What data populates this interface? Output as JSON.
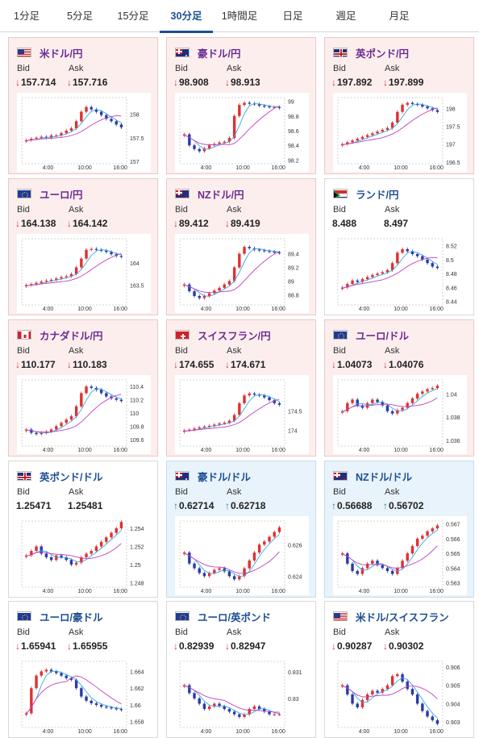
{
  "tabs": [
    {
      "label": "1分足",
      "active": false
    },
    {
      "label": "5分足",
      "active": false
    },
    {
      "label": "15分足",
      "active": false
    },
    {
      "label": "30分足",
      "active": true
    },
    {
      "label": "1時間足",
      "active": false
    },
    {
      "label": "日足",
      "active": false
    },
    {
      "label": "週足",
      "active": false
    },
    {
      "label": "月足",
      "active": false
    }
  ],
  "x_ticks": [
    "4:00",
    "10:00",
    "16:00"
  ],
  "colors": {
    "up": "#e03030",
    "down": "#2a3aa8",
    "ma_short": "#39a8e0",
    "ma_long": "#c040c0"
  },
  "cards": [
    {
      "name": "米ドル/円",
      "bg": "pink",
      "flags": [
        "us",
        "jp"
      ],
      "bid_label": "Bid",
      "ask_label": "Ask",
      "bid_dir": "↓",
      "ask_dir": "↓",
      "bid": "157.714",
      "ask": "157.716",
      "chart_data": {
        "type": "candlestick",
        "y_ticks": [
          "158",
          "157.5",
          "157"
        ],
        "ylim": [
          156.95,
          158.35
        ],
        "series": [
          157.45,
          157.48,
          157.5,
          157.52,
          157.5,
          157.55,
          157.55,
          157.6,
          157.65,
          157.7,
          157.85,
          158.05,
          158.15,
          158.1,
          158.05,
          157.98,
          157.9,
          157.85,
          157.78,
          157.72
        ]
      }
    },
    {
      "name": "豪ドル/円",
      "bg": "pink",
      "flags": [
        "au",
        "jp"
      ],
      "bid_label": "Bid",
      "ask_label": "Ask",
      "bid_dir": "↓",
      "ask_dir": "↓",
      "bid": "98.908",
      "ask": "98.913",
      "chart_data": {
        "type": "candlestick",
        "y_ticks": [
          "99",
          "98.8",
          "98.6",
          "98.4",
          "98.2"
        ],
        "ylim": [
          98.15,
          99.05
        ],
        "series": [
          98.55,
          98.4,
          98.35,
          98.32,
          98.36,
          98.4,
          98.42,
          98.44,
          98.45,
          98.5,
          98.8,
          98.95,
          98.98,
          98.97,
          98.96,
          98.94,
          98.93,
          98.92,
          98.92,
          98.91
        ]
      }
    },
    {
      "name": "英ポンド/円",
      "bg": "pink",
      "flags": [
        "gb",
        "jp"
      ],
      "bid_label": "Bid",
      "ask_label": "Ask",
      "bid_dir": "↓",
      "ask_dir": "↓",
      "bid": "197.892",
      "ask": "197.899",
      "chart_data": {
        "type": "candlestick",
        "y_ticks": [
          "198",
          "197.5",
          "197",
          "196.5"
        ],
        "ylim": [
          196.45,
          198.3
        ],
        "series": [
          197.0,
          197.05,
          197.1,
          197.15,
          197.2,
          197.25,
          197.3,
          197.35,
          197.4,
          197.45,
          197.6,
          197.9,
          198.1,
          198.15,
          198.12,
          198.1,
          198.05,
          198.0,
          197.95,
          197.9
        ]
      }
    },
    {
      "name": "ユーロ/円",
      "bg": "pink",
      "flags": [
        "eu",
        "jp"
      ],
      "bid_label": "Bid",
      "ask_label": "Ask",
      "bid_dir": "↓",
      "ask_dir": "↓",
      "bid": "164.138",
      "ask": "164.142",
      "chart_data": {
        "type": "candlestick",
        "y_ticks": [
          "164",
          "163.5"
        ],
        "ylim": [
          163.05,
          164.55
        ],
        "series": [
          163.5,
          163.52,
          163.55,
          163.58,
          163.6,
          163.62,
          163.65,
          163.68,
          163.7,
          163.75,
          163.9,
          164.1,
          164.3,
          164.32,
          164.3,
          164.28,
          164.25,
          164.2,
          164.16,
          164.14
        ]
      }
    },
    {
      "name": "NZドル/円",
      "bg": "pink",
      "flags": [
        "nz",
        "jp"
      ],
      "bid_label": "Bid",
      "ask_label": "Ask",
      "bid_dir": "↓",
      "ask_dir": "↓",
      "bid": "89.412",
      "ask": "89.419",
      "chart_data": {
        "type": "candlestick",
        "y_ticks": [
          "89.4",
          "89.2",
          "89",
          "88.8"
        ],
        "ylim": [
          88.65,
          89.62
        ],
        "series": [
          88.95,
          88.85,
          88.78,
          88.75,
          88.78,
          88.82,
          88.86,
          88.9,
          88.95,
          89.0,
          89.2,
          89.4,
          89.5,
          89.48,
          89.46,
          89.45,
          89.44,
          89.43,
          89.42,
          89.41
        ]
      }
    },
    {
      "name": "ランド/円",
      "bg": "white",
      "flags": [
        "za",
        "jp"
      ],
      "bid_label": "Bid",
      "ask_label": "Ask",
      "bid_dir": "",
      "ask_dir": "",
      "bid": "8.488",
      "ask": "8.497",
      "chart_data": {
        "type": "candlestick",
        "y_ticks": [
          "8.52",
          "8.5",
          "8.48",
          "8.46",
          "8.44"
        ],
        "ylim": [
          8.435,
          8.53
        ],
        "series": [
          8.46,
          8.465,
          8.47,
          8.468,
          8.472,
          8.475,
          8.478,
          8.48,
          8.482,
          8.485,
          8.495,
          8.51,
          8.515,
          8.512,
          8.508,
          8.505,
          8.5,
          8.495,
          8.49,
          8.488
        ]
      }
    },
    {
      "name": "カナダドル/円",
      "bg": "pink",
      "flags": [
        "ca",
        "jp"
      ],
      "bid_label": "Bid",
      "ask_label": "Ask",
      "bid_dir": "↓",
      "ask_dir": "↓",
      "bid": "110.177",
      "ask": "110.183",
      "chart_data": {
        "type": "candlestick",
        "y_ticks": [
          "110.4",
          "110.2",
          "110",
          "109.8",
          "109.6"
        ],
        "ylim": [
          109.5,
          110.5
        ],
        "series": [
          109.75,
          109.7,
          109.68,
          109.7,
          109.72,
          109.75,
          109.8,
          109.85,
          109.9,
          109.95,
          110.1,
          110.3,
          110.4,
          110.38,
          110.35,
          110.3,
          110.25,
          110.22,
          110.2,
          110.18
        ]
      }
    },
    {
      "name": "スイスフラン/円",
      "bg": "pink",
      "flags": [
        "ch",
        "jp"
      ],
      "bid_label": "Bid",
      "ask_label": "Ask",
      "bid_dir": "↓",
      "ask_dir": "↓",
      "bid": "174.655",
      "ask": "174.671",
      "chart_data": {
        "type": "candlestick",
        "y_ticks": [
          "174.5",
          "174"
        ],
        "ylim": [
          173.6,
          175.3
        ],
        "series": [
          174.0,
          174.02,
          174.05,
          174.08,
          174.1,
          174.12,
          174.15,
          174.18,
          174.2,
          174.25,
          174.4,
          174.7,
          174.9,
          174.95,
          174.92,
          174.9,
          174.85,
          174.78,
          174.7,
          174.66
        ]
      }
    },
    {
      "name": "ユーロ/ドル",
      "bg": "pink",
      "flags": [
        "eu",
        "us"
      ],
      "bid_label": "Bid",
      "ask_label": "Ask",
      "bid_dir": "↓",
      "ask_dir": "↓",
      "bid": "1.04073",
      "ask": "1.04076",
      "chart_data": {
        "type": "candlestick",
        "y_ticks": [
          "1.04",
          "1.038",
          "1.036"
        ],
        "ylim": [
          1.0355,
          1.0412
        ],
        "series": [
          1.0385,
          1.0392,
          1.0395,
          1.039,
          1.0388,
          1.0392,
          1.0395,
          1.0393,
          1.039,
          1.0385,
          1.0383,
          1.0386,
          1.0388,
          1.0392,
          1.0396,
          1.04,
          1.0402,
          1.0404,
          1.0405,
          1.0407
        ]
      }
    },
    {
      "name": "英ポンド/ドル",
      "bg": "white",
      "flags": [
        "gb",
        "us"
      ],
      "bid_label": "Bid",
      "ask_label": "Ask",
      "bid_dir": "",
      "ask_dir": "",
      "bid": "1.25471",
      "ask": "1.25481",
      "chart_data": {
        "type": "candlestick",
        "y_ticks": [
          "1.254",
          "1.252",
          "1.25",
          "1.248"
        ],
        "ylim": [
          1.2475,
          1.2548
        ],
        "series": [
          1.251,
          1.2515,
          1.252,
          1.2512,
          1.2508,
          1.2505,
          1.251,
          1.2508,
          1.2505,
          1.25,
          1.2502,
          1.2508,
          1.2512,
          1.2515,
          1.252,
          1.2525,
          1.253,
          1.2535,
          1.254,
          1.2547
        ]
      }
    },
    {
      "name": "豪ドル/ドル",
      "bg": "blue",
      "flags": [
        "au",
        "us"
      ],
      "bid_label": "Bid",
      "ask_label": "Ask",
      "bid_dir": "↑",
      "ask_dir": "↑",
      "bid": "0.62714",
      "ask": "0.62718",
      "chart_data": {
        "type": "candlestick",
        "y_ticks": [
          "0.626",
          "0.624"
        ],
        "ylim": [
          0.6233,
          0.6275
        ],
        "series": [
          0.6255,
          0.6248,
          0.6245,
          0.6242,
          0.624,
          0.6242,
          0.6244,
          0.6245,
          0.6243,
          0.624,
          0.6238,
          0.624,
          0.6245,
          0.625,
          0.6255,
          0.626,
          0.6262,
          0.6265,
          0.6268,
          0.6271
        ]
      }
    },
    {
      "name": "NZドル/ドル",
      "bg": "blue",
      "flags": [
        "nz",
        "us"
      ],
      "bid_label": "Bid",
      "ask_label": "Ask",
      "bid_dir": "↑",
      "ask_dir": "↑",
      "bid": "0.56688",
      "ask": "0.56702",
      "chart_data": {
        "type": "candlestick",
        "y_ticks": [
          "0.567",
          "0.566",
          "0.565",
          "0.564",
          "0.563"
        ],
        "ylim": [
          0.5627,
          0.5672
        ],
        "series": [
          0.565,
          0.5643,
          0.5638,
          0.5636,
          0.564,
          0.5643,
          0.5645,
          0.5642,
          0.564,
          0.5638,
          0.5636,
          0.564,
          0.5645,
          0.565,
          0.5655,
          0.566,
          0.5662,
          0.5665,
          0.5667,
          0.5669
        ]
      }
    },
    {
      "name": "ユーロ/豪ドル",
      "bg": "white",
      "flags": [
        "eu",
        "au"
      ],
      "bid_label": "Bid",
      "ask_label": "Ask",
      "bid_dir": "↓",
      "ask_dir": "↓",
      "bid": "1.65941",
      "ask": "1.65955",
      "chart_data": {
        "type": "candlestick",
        "y_ticks": [
          "1.664",
          "1.662",
          "1.66",
          "1.658"
        ],
        "ylim": [
          1.6573,
          1.6652
        ],
        "series": [
          1.659,
          1.662,
          1.6635,
          1.664,
          1.6642,
          1.664,
          1.6638,
          1.6635,
          1.6632,
          1.663,
          1.662,
          1.661,
          1.6605,
          1.6602,
          1.66,
          1.6598,
          1.6597,
          1.6596,
          1.6595,
          1.6594
        ]
      }
    },
    {
      "name": "ユーロ/英ポンド",
      "bg": "white",
      "flags": [
        "eu",
        "gb"
      ],
      "bid_label": "Bid",
      "ask_label": "Ask",
      "bid_dir": "↓",
      "ask_dir": "↓",
      "bid": "0.82939",
      "ask": "0.82947",
      "chart_data": {
        "type": "candlestick",
        "y_ticks": [
          "0.831",
          "0.83"
        ],
        "ylim": [
          0.8289,
          0.8314
        ],
        "series": [
          0.8305,
          0.8302,
          0.83,
          0.8298,
          0.8296,
          0.8297,
          0.8298,
          0.8297,
          0.8296,
          0.8295,
          0.8294,
          0.8293,
          0.8294,
          0.8296,
          0.8297,
          0.8296,
          0.8295,
          0.8294,
          0.8294,
          0.8294
        ]
      }
    },
    {
      "name": "米ドル/スイスフラン",
      "bg": "white",
      "flags": [
        "us",
        "ch"
      ],
      "bid_label": "Bid",
      "ask_label": "Ask",
      "bid_dir": "↓",
      "ask_dir": "↓",
      "bid": "0.90287",
      "ask": "0.90302",
      "chart_data": {
        "type": "candlestick",
        "y_ticks": [
          "0.906",
          "0.905",
          "0.904",
          "0.903"
        ],
        "ylim": [
          0.9027,
          0.9063
        ],
        "series": [
          0.905,
          0.9045,
          0.904,
          0.9038,
          0.9042,
          0.9045,
          0.9047,
          0.9046,
          0.9048,
          0.905,
          0.9055,
          0.9056,
          0.9052,
          0.9048,
          0.9045,
          0.904,
          0.9036,
          0.9033,
          0.9031,
          0.9029
        ]
      }
    }
  ]
}
